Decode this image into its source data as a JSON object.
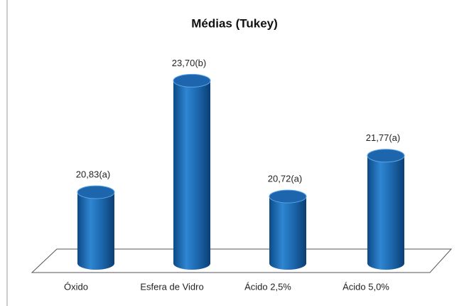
{
  "chart_data": {
    "type": "bar3d",
    "title": "Médias (Tukey)",
    "categories": [
      "Óxido",
      "Esfera de Vidro",
      "Ácido 2,5%",
      "Ácido 5,0%"
    ],
    "values": [
      20.83,
      23.7,
      20.72,
      21.77
    ],
    "value_labels": [
      "20,83(a)",
      "23,70(b)",
      "20,72(a)",
      "21,77(a)"
    ],
    "color": "#1f6db5",
    "ylim": [
      19,
      24
    ]
  }
}
